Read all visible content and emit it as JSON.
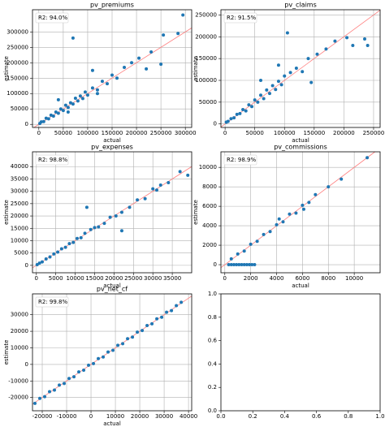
{
  "chart_data": [
    {
      "type": "scatter",
      "title": "pv_premiums",
      "xlabel": "actual",
      "ylabel": "estimate",
      "annotation": "R2: 94.0%",
      "color": "#1f77b4",
      "line_color": "#ff7f7f",
      "grid": true,
      "xlim": [
        -13000,
        313000
      ],
      "ylim": [
        -10000,
        372000
      ],
      "xticks": [
        0,
        50000,
        100000,
        150000,
        200000,
        250000,
        300000
      ],
      "yticks": [
        0,
        50000,
        100000,
        150000,
        200000,
        250000,
        300000
      ],
      "x": [
        2000,
        5000,
        10000,
        15000,
        20000,
        25000,
        30000,
        35000,
        40000,
        45000,
        50000,
        55000,
        60000,
        65000,
        70000,
        75000,
        80000,
        85000,
        90000,
        95000,
        100000,
        110000,
        120000,
        130000,
        140000,
        150000,
        160000,
        175000,
        190000,
        205000,
        220000,
        230000,
        250000,
        255000,
        285000,
        295000,
        70000,
        40000,
        110000,
        60000,
        120000
      ],
      "y": [
        3000,
        8000,
        9000,
        20000,
        18000,
        30000,
        27000,
        40000,
        36000,
        50000,
        45000,
        62000,
        55000,
        70000,
        66000,
        85000,
        76000,
        92000,
        84000,
        105000,
        95000,
        118000,
        112000,
        140000,
        132000,
        160000,
        150000,
        185000,
        200000,
        215000,
        180000,
        235000,
        195000,
        290000,
        295000,
        355000,
        280000,
        80000,
        175000,
        40000,
        100000
      ]
    },
    {
      "type": "scatter",
      "title": "pv_claims",
      "xlabel": "actual",
      "ylabel": "estimate",
      "annotation": "R2: 91.5%",
      "color": "#1f77b4",
      "line_color": "#ff7f7f",
      "grid": true,
      "xlim": [
        -7000,
        261000
      ],
      "ylim": [
        -8000,
        262000
      ],
      "xticks": [
        0,
        50000,
        100000,
        150000,
        200000,
        250000
      ],
      "yticks": [
        0,
        50000,
        100000,
        150000,
        200000,
        250000
      ],
      "x": [
        2000,
        5000,
        10000,
        15000,
        20000,
        25000,
        30000,
        35000,
        40000,
        45000,
        50000,
        55000,
        60000,
        65000,
        70000,
        75000,
        80000,
        85000,
        90000,
        95000,
        100000,
        110000,
        120000,
        130000,
        140000,
        155000,
        170000,
        185000,
        205000,
        215000,
        235000,
        240000,
        105000,
        60000,
        90000,
        145000
      ],
      "y": [
        4000,
        6000,
        12000,
        14000,
        22000,
        24000,
        33000,
        30000,
        44000,
        40000,
        55000,
        50000,
        66000,
        58000,
        78000,
        70000,
        88000,
        79000,
        98000,
        90000,
        110000,
        118000,
        128000,
        120000,
        150000,
        160000,
        172000,
        190000,
        198000,
        180000,
        195000,
        180000,
        209000,
        100000,
        135000,
        95000
      ]
    },
    {
      "type": "scatter",
      "title": "pv_expenses",
      "xlabel": "actual",
      "ylabel": "estimate",
      "annotation": "R2: 98.8%",
      "color": "#1f77b4",
      "line_color": "#ff7f7f",
      "grid": true,
      "xlim": [
        -1000,
        40000
      ],
      "ylim": [
        -3000,
        46000
      ],
      "xticks": [
        0,
        5000,
        10000,
        15000,
        20000,
        25000,
        30000,
        35000
      ],
      "yticks": [
        0,
        5000,
        10000,
        15000,
        20000,
        25000,
        30000,
        35000,
        40000
      ],
      "x": [
        200,
        800,
        1500,
        2500,
        3500,
        4500,
        5500,
        6500,
        7500,
        8500,
        9500,
        10500,
        11500,
        12500,
        14000,
        15000,
        16000,
        17500,
        19000,
        20500,
        22000,
        24000,
        26000,
        28000,
        30000,
        31000,
        32000,
        34000,
        37000,
        39000,
        13000,
        22000
      ],
      "y": [
        300,
        900,
        1400,
        2600,
        3400,
        4600,
        5400,
        6700,
        7300,
        8800,
        9300,
        10900,
        11200,
        13000,
        14500,
        15300,
        15600,
        17000,
        19500,
        20000,
        21500,
        23500,
        26500,
        27000,
        31000,
        30500,
        32500,
        33500,
        38000,
        36500,
        23500,
        14000
      ]
    },
    {
      "type": "scatter",
      "title": "pv_commissions",
      "xlabel": "actual",
      "ylabel": "estimate",
      "annotation": "R2: 98.9%",
      "color": "#1f77b4",
      "line_color": "#ff7f7f",
      "grid": true,
      "xlim": [
        -300,
        12000
      ],
      "ylim": [
        -830,
        11600
      ],
      "xticks": [
        0,
        2000,
        4000,
        6000,
        8000,
        10000
      ],
      "yticks": [
        0,
        2000,
        4000,
        6000,
        8000,
        10000
      ],
      "x": [
        300,
        500,
        700,
        900,
        1100,
        1300,
        1500,
        1700,
        1900,
        2100,
        2300,
        500,
        1000,
        1500,
        2000,
        2500,
        3000,
        3500,
        4000,
        4500,
        5000,
        5500,
        6000,
        6500,
        7000,
        8000,
        9000,
        11000,
        4200,
        6100
      ],
      "y": [
        0,
        0,
        0,
        0,
        0,
        0,
        0,
        0,
        0,
        0,
        0,
        600,
        1100,
        1400,
        2100,
        2400,
        3100,
        3400,
        4100,
        4400,
        5200,
        5300,
        6100,
        6400,
        7200,
        8000,
        8800,
        11000,
        4700,
        5700
      ]
    },
    {
      "type": "scatter",
      "title": "pv_net_cf",
      "xlabel": "actual",
      "ylabel": "estimate",
      "annotation": "R2: 99.8%",
      "color": "#1f77b4",
      "line_color": "#ff7f7f",
      "grid": true,
      "xlim": [
        -24000,
        41300
      ],
      "ylim": [
        -28000,
        42600
      ],
      "xticks": [
        -20000,
        -10000,
        0,
        10000,
        20000,
        30000,
        40000
      ],
      "yticks": [
        -20000,
        -10000,
        0,
        10000,
        20000,
        30000
      ],
      "x": [
        -23000,
        -21000,
        -19000,
        -17000,
        -15000,
        -13000,
        -11000,
        -9000,
        -7000,
        -5000,
        -3000,
        -1000,
        1000,
        3000,
        5000,
        7000,
        9000,
        11000,
        13000,
        15000,
        17000,
        19000,
        21000,
        23000,
        25000,
        27000,
        29000,
        31000,
        33000,
        35000,
        37000
      ],
      "y": [
        -23500,
        -20500,
        -19500,
        -16500,
        -15500,
        -12500,
        -11500,
        -8500,
        -7500,
        -4500,
        -3500,
        -500,
        500,
        3500,
        4500,
        7500,
        8500,
        11500,
        12500,
        15500,
        16500,
        19500,
        20500,
        23500,
        24500,
        27500,
        28500,
        31500,
        32500,
        35500,
        37500
      ]
    },
    {
      "type": "axes",
      "xlim": [
        0,
        1
      ],
      "ylim": [
        0,
        1
      ],
      "xticks": [
        {
          "value": 0,
          "label": "0.0"
        },
        {
          "value": 0.2,
          "label": "0.2"
        },
        {
          "value": 0.4,
          "label": "0.4"
        },
        {
          "value": 0.6,
          "label": "0.6"
        },
        {
          "value": 0.8,
          "label": "0.8"
        },
        {
          "value": 1,
          "label": "1.0"
        }
      ],
      "yticks": [
        {
          "value": 0,
          "label": "0.0"
        },
        {
          "value": 0.2,
          "label": "0.2"
        },
        {
          "value": 0.4,
          "label": "0.4"
        },
        {
          "value": 0.6,
          "label": "0.6"
        },
        {
          "value": 0.8,
          "label": "0.8"
        },
        {
          "value": 1,
          "label": "1.0"
        }
      ]
    }
  ]
}
